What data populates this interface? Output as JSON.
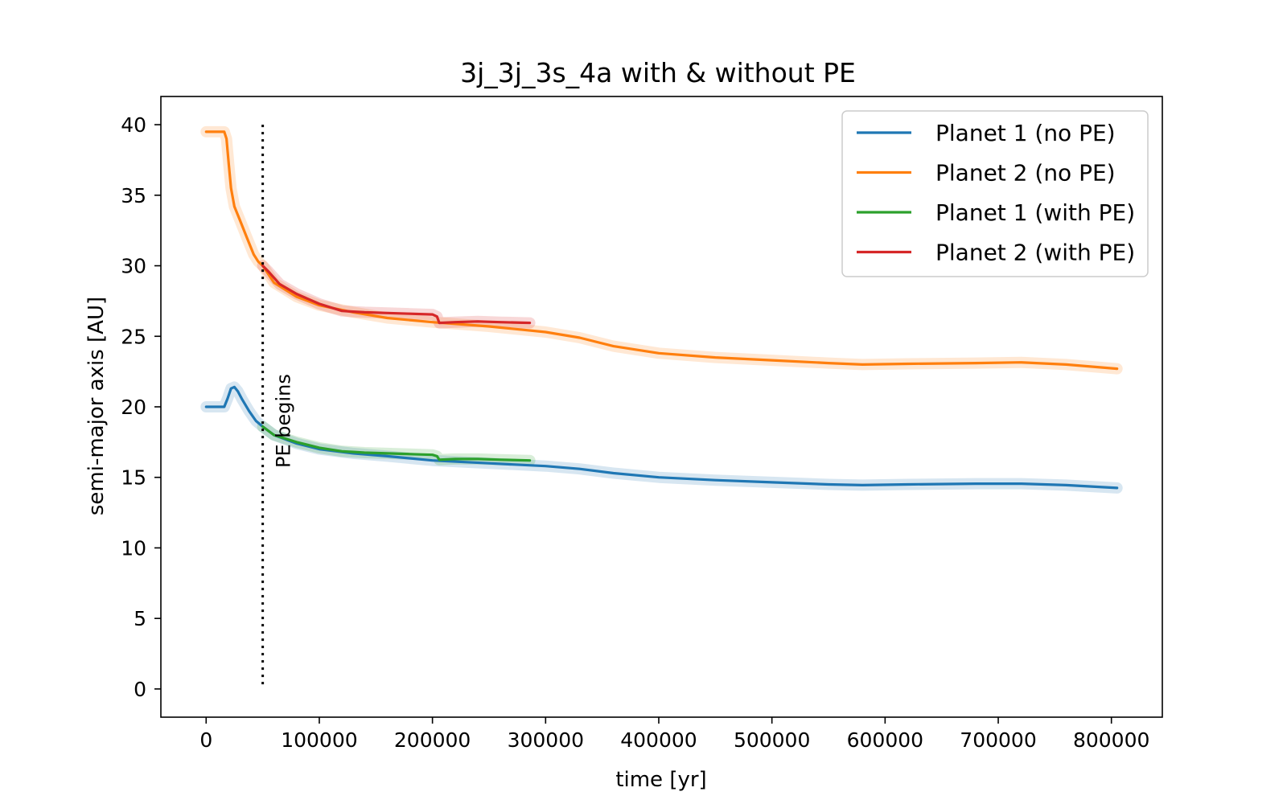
{
  "chart_data": {
    "type": "line",
    "title": "3j_3j_3s_4a with & without PE",
    "xlabel": "time [yr]",
    "ylabel": "semi-major axis [AU]",
    "xlim": [
      -40000,
      845000
    ],
    "ylim": [
      -2,
      42
    ],
    "xticks": [
      0,
      100000,
      200000,
      300000,
      400000,
      500000,
      600000,
      700000,
      800000
    ],
    "xtick_labels": [
      "0",
      "100000",
      "200000",
      "300000",
      "400000",
      "500000",
      "600000",
      "700000",
      "800000"
    ],
    "yticks": [
      0,
      5,
      10,
      15,
      20,
      25,
      30,
      35,
      40
    ],
    "ytick_labels": [
      "0",
      "5",
      "10",
      "15",
      "20",
      "25",
      "30",
      "35",
      "40"
    ],
    "grid": false,
    "legend_position": "top-right",
    "annotation": {
      "text": "PE begins",
      "x": 50000,
      "y_range": [
        0,
        40
      ],
      "style": "dotted"
    },
    "series": [
      {
        "name": "Planet 1 (no PE)",
        "color": "#1f77b4",
        "x": [
          0,
          16000,
          19000,
          22000,
          25000,
          28000,
          32000,
          38000,
          44000,
          50000,
          60000,
          80000,
          100000,
          130000,
          160000,
          200000,
          250000,
          300000,
          330000,
          360000,
          400000,
          450000,
          500000,
          550000,
          580000,
          620000,
          680000,
          720000,
          760000,
          805000
        ],
        "y": [
          20.0,
          20.0,
          20.6,
          21.3,
          21.4,
          21.1,
          20.5,
          19.7,
          19.0,
          18.6,
          18.0,
          17.4,
          17.0,
          16.7,
          16.5,
          16.2,
          16.0,
          15.8,
          15.6,
          15.3,
          15.0,
          14.8,
          14.65,
          14.5,
          14.45,
          14.5,
          14.55,
          14.55,
          14.45,
          14.25
        ]
      },
      {
        "name": "Planet 2 (no PE)",
        "color": "#ff7f0e",
        "x": [
          0,
          16000,
          18000,
          20000,
          22000,
          25000,
          30000,
          36000,
          42000,
          46000,
          50000,
          60000,
          80000,
          100000,
          130000,
          160000,
          200000,
          250000,
          300000,
          330000,
          360000,
          400000,
          450000,
          500000,
          550000,
          580000,
          620000,
          680000,
          720000,
          760000,
          805000
        ],
        "y": [
          39.5,
          39.5,
          39.0,
          37.2,
          35.5,
          34.2,
          33.2,
          32.0,
          30.8,
          30.3,
          30.0,
          28.8,
          27.8,
          27.2,
          26.7,
          26.3,
          26.0,
          25.7,
          25.3,
          24.9,
          24.3,
          23.8,
          23.5,
          23.3,
          23.1,
          23.0,
          23.05,
          23.1,
          23.15,
          23.0,
          22.7
        ]
      },
      {
        "name": "Planet 1 (with PE)",
        "color": "#2ca02c",
        "x": [
          50000,
          60000,
          80000,
          100000,
          120000,
          130000,
          140000,
          160000,
          180000,
          200000,
          204000,
          206000,
          220000,
          240000,
          260000,
          286000
        ],
        "y": [
          18.6,
          18.0,
          17.5,
          17.1,
          16.85,
          16.8,
          16.75,
          16.7,
          16.65,
          16.6,
          16.5,
          16.25,
          16.3,
          16.3,
          16.25,
          16.2
        ]
      },
      {
        "name": "Planet 2 (with PE)",
        "color": "#d62728",
        "x": [
          50000,
          55000,
          65000,
          80000,
          100000,
          120000,
          130000,
          140000,
          160000,
          180000,
          200000,
          204000,
          206000,
          220000,
          240000,
          260000,
          286000
        ],
        "y": [
          30.0,
          29.6,
          28.7,
          28.0,
          27.3,
          26.8,
          26.75,
          26.7,
          26.65,
          26.6,
          26.55,
          26.4,
          25.95,
          26.0,
          26.05,
          26.0,
          25.95
        ]
      }
    ]
  }
}
